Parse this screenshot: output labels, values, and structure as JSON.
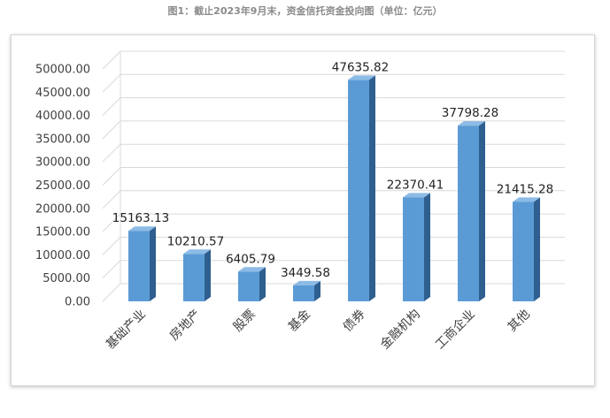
{
  "title": "图1：截止2023年9月末，资金信托资金投向图（单位：亿元）",
  "chart_data": {
    "type": "bar",
    "categories": [
      "基础产业",
      "房地产",
      "股票",
      "基金",
      "债券",
      "金融机构",
      "工商企业",
      "其他"
    ],
    "values": [
      15163.13,
      10210.57,
      6405.79,
      3449.58,
      47635.82,
      22370.41,
      37798.28,
      21415.28
    ],
    "value_labels": [
      "15163.13",
      "10210.57",
      "6405.79",
      "3449.58",
      "47635.82",
      "22370.41",
      "37798.28",
      "21415.28"
    ],
    "yticks": [
      0,
      5000,
      10000,
      15000,
      20000,
      25000,
      30000,
      35000,
      40000,
      45000,
      50000
    ],
    "ytick_labels": [
      "0.00",
      "5000.00",
      "10000.00",
      "15000.00",
      "20000.00",
      "25000.00",
      "30000.00",
      "35000.00",
      "40000.00",
      "45000.00",
      "50000.00"
    ],
    "ylim": [
      0,
      50000
    ],
    "grid": true,
    "legend": "none",
    "style": "3d-bar",
    "colors": {
      "bar_front": "#5b9bd5",
      "bar_side": "#2e5f8f",
      "bar_top": "#8cbbe6",
      "grid": "#d9d9d9"
    }
  }
}
